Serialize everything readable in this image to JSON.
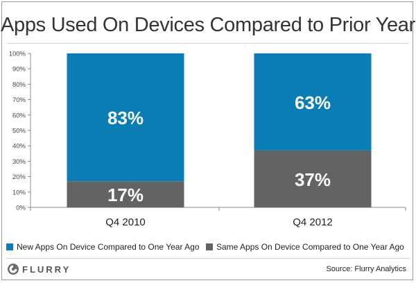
{
  "chart_data": {
    "type": "bar",
    "stacked": true,
    "title": "Apps Used On Devices Compared to Prior Year",
    "categories": [
      "Q4 2010",
      "Q4 2012"
    ],
    "series": [
      {
        "name": "Same Apps On Device Compared to One Year Ago",
        "values": [
          17,
          37
        ],
        "labels": [
          "17%",
          "37%"
        ],
        "color": "#636363"
      },
      {
        "name": "New Apps On Device Compared to One Year Ago",
        "values": [
          83,
          63
        ],
        "labels": [
          "83%",
          "63%"
        ],
        "color": "#0a7eb4"
      }
    ],
    "ylim": [
      0,
      100
    ],
    "yticks": [
      "0%",
      "10%",
      "20%",
      "30%",
      "40%",
      "50%",
      "60%",
      "70%",
      "80%",
      "90%",
      "100%"
    ],
    "xlabel": "",
    "ylabel": "",
    "grid": false,
    "legend_position": "bottom"
  },
  "legend": [
    {
      "label": "New Apps On Device Compared to One Year Ago",
      "color": "#0a7eb4"
    },
    {
      "label": "Same Apps On Device Compared to One Year Ago",
      "color": "#636363"
    }
  ],
  "footer": {
    "logo_text": "FLURRY",
    "logo_icon": "flurry-logo-icon",
    "source": "Source: Flurry Analytics"
  }
}
